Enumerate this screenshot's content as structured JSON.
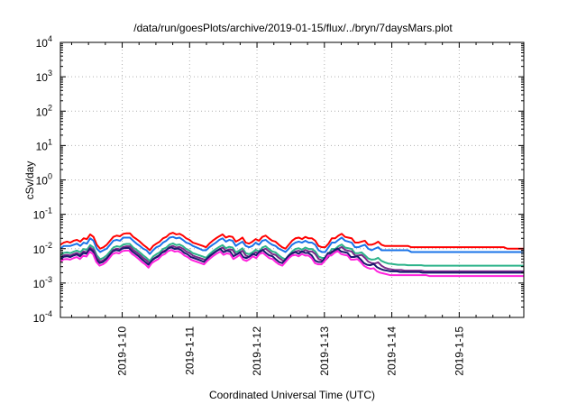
{
  "chart_data": {
    "type": "line",
    "title": "/data/run/goesPlots/archive/2019-01-15/flux/../bryn/7daysMars.plot",
    "xlabel": "Coordinated Universal Time (UTC)",
    "ylabel": "cSv/day",
    "y_scale": "log",
    "ylim": [
      0.0001,
      10000
    ],
    "y_ticks": [
      {
        "exp": "-4",
        "value": 0.0001
      },
      {
        "exp": "-3",
        "value": 0.001
      },
      {
        "exp": "-2",
        "value": 0.01
      },
      {
        "exp": "-1",
        "value": 0.1
      },
      {
        "exp": "0",
        "value": 1
      },
      {
        "exp": "1",
        "value": 10
      },
      {
        "exp": "2",
        "value": 100
      },
      {
        "exp": "3",
        "value": 1000
      },
      {
        "exp": "4",
        "value": 10000
      }
    ],
    "xlim": [
      "2019-01-09T02:00",
      "2019-01-15T23:00"
    ],
    "x_ticks": [
      "2019-1-10",
      "2019-1-11",
      "2019-1-12",
      "2019-1-13",
      "2019-1-14",
      "2019-1-15"
    ],
    "grid": true,
    "series": [
      {
        "color": "#ff0000",
        "values": [
          0.013,
          0.015,
          0.016,
          0.015,
          0.017,
          0.018,
          0.016,
          0.02,
          0.019,
          0.026,
          0.022,
          0.013,
          0.01,
          0.011,
          0.013,
          0.017,
          0.022,
          0.024,
          0.023,
          0.027,
          0.028,
          0.028,
          0.022,
          0.019,
          0.016,
          0.013,
          0.011,
          0.009,
          0.012,
          0.014,
          0.016,
          0.02,
          0.022,
          0.027,
          0.029,
          0.026,
          0.027,
          0.024,
          0.02,
          0.018,
          0.015,
          0.014,
          0.013,
          0.012,
          0.011,
          0.014,
          0.017,
          0.02,
          0.023,
          0.026,
          0.021,
          0.023,
          0.022,
          0.016,
          0.018,
          0.021,
          0.015,
          0.014,
          0.016,
          0.019,
          0.017,
          0.022,
          0.024,
          0.02,
          0.017,
          0.016,
          0.013,
          0.011,
          0.01,
          0.013,
          0.017,
          0.02,
          0.021,
          0.019,
          0.022,
          0.02,
          0.02,
          0.017,
          0.012,
          0.011,
          0.011,
          0.014,
          0.02,
          0.02,
          0.024,
          0.027,
          0.022,
          0.021,
          0.02,
          0.015,
          0.015,
          0.016,
          0.017,
          0.013,
          0.013,
          0.014,
          0.016,
          0.013,
          0.012,
          0.012,
          0.012,
          0.012,
          0.012,
          0.012,
          0.012,
          0.012,
          0.011,
          0.011,
          0.011,
          0.011,
          0.011,
          0.011,
          0.011,
          0.011,
          0.011,
          0.011,
          0.011,
          0.011,
          0.011,
          0.011,
          0.011,
          0.011,
          0.011,
          0.011,
          0.011,
          0.011,
          0.011,
          0.011,
          0.011,
          0.011,
          0.011,
          0.011,
          0.011,
          0.011,
          0.011,
          0.01,
          0.01,
          0.01,
          0.01,
          0.01,
          0.01
        ]
      },
      {
        "color": "#1a73e8",
        "values": [
          0.01,
          0.012,
          0.012,
          0.012,
          0.013,
          0.014,
          0.012,
          0.015,
          0.014,
          0.02,
          0.017,
          0.01,
          0.008,
          0.009,
          0.01,
          0.013,
          0.017,
          0.018,
          0.017,
          0.021,
          0.021,
          0.021,
          0.017,
          0.014,
          0.012,
          0.01,
          0.009,
          0.007,
          0.009,
          0.011,
          0.012,
          0.015,
          0.017,
          0.021,
          0.022,
          0.02,
          0.021,
          0.018,
          0.015,
          0.014,
          0.012,
          0.011,
          0.01,
          0.009,
          0.009,
          0.011,
          0.013,
          0.015,
          0.018,
          0.02,
          0.016,
          0.018,
          0.017,
          0.012,
          0.014,
          0.016,
          0.012,
          0.011,
          0.012,
          0.015,
          0.013,
          0.017,
          0.018,
          0.015,
          0.013,
          0.012,
          0.01,
          0.009,
          0.008,
          0.01,
          0.013,
          0.015,
          0.016,
          0.015,
          0.017,
          0.015,
          0.015,
          0.013,
          0.009,
          0.008,
          0.008,
          0.011,
          0.015,
          0.015,
          0.018,
          0.021,
          0.017,
          0.016,
          0.015,
          0.011,
          0.011,
          0.012,
          0.013,
          0.01,
          0.009,
          0.01,
          0.011,
          0.009,
          0.009,
          0.009,
          0.009,
          0.009,
          0.009,
          0.009,
          0.009,
          0.009,
          0.008,
          0.008,
          0.008,
          0.008,
          0.008,
          0.008,
          0.008,
          0.008,
          0.008,
          0.008,
          0.008,
          0.008,
          0.008,
          0.008,
          0.008,
          0.008,
          0.008,
          0.008,
          0.008,
          0.008,
          0.008,
          0.008,
          0.008,
          0.008,
          0.008,
          0.008,
          0.008,
          0.008,
          0.008,
          0.008,
          0.008,
          0.008,
          0.008,
          0.008,
          0.008
        ]
      },
      {
        "color": "#2db38a",
        "values": [
          0.0065,
          0.0075,
          0.0078,
          0.0074,
          0.0082,
          0.0088,
          0.0079,
          0.0098,
          0.0092,
          0.0127,
          0.0108,
          0.0064,
          0.0049,
          0.0054,
          0.0064,
          0.0083,
          0.0108,
          0.0118,
          0.0113,
          0.0132,
          0.0137,
          0.0137,
          0.0108,
          0.0093,
          0.0078,
          0.0064,
          0.0054,
          0.0044,
          0.0059,
          0.0069,
          0.0078,
          0.0098,
          0.0108,
          0.0132,
          0.0142,
          0.0127,
          0.0132,
          0.0118,
          0.0098,
          0.0088,
          0.0074,
          0.0069,
          0.0064,
          0.0059,
          0.0054,
          0.0069,
          0.0083,
          0.0098,
          0.0113,
          0.0127,
          0.0103,
          0.0113,
          0.0108,
          0.0078,
          0.0088,
          0.0103,
          0.0074,
          0.0069,
          0.0078,
          0.0093,
          0.0083,
          0.0108,
          0.0118,
          0.0098,
          0.0083,
          0.0078,
          0.0064,
          0.0054,
          0.0049,
          0.0064,
          0.0083,
          0.0098,
          0.0103,
          0.0093,
          0.0108,
          0.0098,
          0.0098,
          0.0083,
          0.0059,
          0.0054,
          0.0054,
          0.0069,
          0.0098,
          0.0098,
          0.0118,
          0.0132,
          0.0108,
          0.0103,
          0.0098,
          0.0074,
          0.0074,
          0.0078,
          0.0064,
          0.0052,
          0.0048,
          0.0049,
          0.0054,
          0.0044,
          0.004,
          0.0037,
          0.0036,
          0.0035,
          0.0034,
          0.0034,
          0.0034,
          0.0033,
          0.0033,
          0.0033,
          0.0033,
          0.0033,
          0.0032,
          0.0032,
          0.0032,
          0.0032,
          0.0032,
          0.0032,
          0.0032,
          0.0032,
          0.0032,
          0.0032,
          0.0032,
          0.0032,
          0.0032,
          0.0032,
          0.0032,
          0.0032,
          0.0032,
          0.0032,
          0.0032,
          0.0032,
          0.0032,
          0.0032,
          0.0032,
          0.0032,
          0.0032,
          0.0032,
          0.0032,
          0.0032,
          0.0032,
          0.0032,
          0.0032
        ]
      },
      {
        "color": "#7a2a8a",
        "values": [
          0.0055,
          0.0064,
          0.0066,
          0.0063,
          0.007,
          0.0075,
          0.0067,
          0.0083,
          0.0078,
          0.0108,
          0.0092,
          0.0054,
          0.0042,
          0.0046,
          0.0054,
          0.007,
          0.0092,
          0.01,
          0.0096,
          0.0112,
          0.0117,
          0.0117,
          0.0092,
          0.0079,
          0.0066,
          0.0054,
          0.0046,
          0.0037,
          0.005,
          0.0058,
          0.0066,
          0.0083,
          0.0092,
          0.0112,
          0.012,
          0.0108,
          0.0112,
          0.01,
          0.0083,
          0.0075,
          0.0063,
          0.0058,
          0.0054,
          0.005,
          0.0046,
          0.0058,
          0.007,
          0.0083,
          0.0096,
          0.0108,
          0.0087,
          0.0096,
          0.0092,
          0.0066,
          0.0075,
          0.0087,
          0.0063,
          0.0058,
          0.0066,
          0.0079,
          0.007,
          0.0092,
          0.01,
          0.0083,
          0.007,
          0.0066,
          0.0054,
          0.0046,
          0.0042,
          0.0054,
          0.007,
          0.0083,
          0.0087,
          0.0079,
          0.0092,
          0.0083,
          0.0083,
          0.007,
          0.005,
          0.0046,
          0.0046,
          0.0058,
          0.0083,
          0.0083,
          0.01,
          0.0112,
          0.0092,
          0.0087,
          0.0083,
          0.0063,
          0.0063,
          0.0066,
          0.0054,
          0.0042,
          0.0038,
          0.0037,
          0.004,
          0.0032,
          0.0028,
          0.0026,
          0.0025,
          0.0024,
          0.0024,
          0.0024,
          0.0023,
          0.0023,
          0.0023,
          0.0023,
          0.0023,
          0.0023,
          0.0022,
          0.0022,
          0.0022,
          0.0022,
          0.0022,
          0.0022,
          0.0022,
          0.0022,
          0.0022,
          0.0022,
          0.0022,
          0.0022,
          0.0022,
          0.0022,
          0.0022,
          0.0022,
          0.0022,
          0.0022,
          0.0022,
          0.0022,
          0.0022,
          0.0022,
          0.0022,
          0.0022,
          0.0022,
          0.0022,
          0.0022,
          0.0022,
          0.0022,
          0.0022,
          0.0022
        ]
      },
      {
        "color": "#1a1a6e",
        "values": [
          0.005,
          0.0058,
          0.006,
          0.0057,
          0.0063,
          0.0068,
          0.006,
          0.0075,
          0.0071,
          0.0098,
          0.0083,
          0.0049,
          0.0038,
          0.0041,
          0.0049,
          0.0064,
          0.0083,
          0.0091,
          0.0087,
          0.0101,
          0.0105,
          0.0105,
          0.0083,
          0.0071,
          0.006,
          0.0049,
          0.0041,
          0.0034,
          0.0045,
          0.0053,
          0.006,
          0.0075,
          0.0083,
          0.0101,
          0.0109,
          0.0098,
          0.0101,
          0.0091,
          0.0075,
          0.0068,
          0.0057,
          0.0053,
          0.0049,
          0.0045,
          0.0041,
          0.0053,
          0.0064,
          0.0075,
          0.0087,
          0.0098,
          0.0079,
          0.0087,
          0.0083,
          0.006,
          0.0068,
          0.0079,
          0.0057,
          0.0053,
          0.006,
          0.0071,
          0.0064,
          0.0083,
          0.0091,
          0.0075,
          0.0064,
          0.006,
          0.0049,
          0.0041,
          0.0038,
          0.0049,
          0.0064,
          0.0075,
          0.0079,
          0.0071,
          0.0083,
          0.0075,
          0.0075,
          0.0064,
          0.0045,
          0.0041,
          0.0041,
          0.0053,
          0.0075,
          0.0075,
          0.0091,
          0.0101,
          0.0083,
          0.0079,
          0.0075,
          0.0057,
          0.0057,
          0.006,
          0.0049,
          0.0038,
          0.0034,
          0.0033,
          0.0036,
          0.0029,
          0.0026,
          0.0024,
          0.0023,
          0.0022,
          0.0022,
          0.0022,
          0.0021,
          0.0021,
          0.0021,
          0.0021,
          0.0021,
          0.0021,
          0.0021,
          0.002,
          0.002,
          0.002,
          0.002,
          0.002,
          0.002,
          0.002,
          0.002,
          0.002,
          0.002,
          0.002,
          0.002,
          0.002,
          0.002,
          0.002,
          0.002,
          0.002,
          0.002,
          0.002,
          0.002,
          0.002,
          0.002,
          0.002,
          0.002,
          0.002,
          0.002,
          0.002,
          0.002,
          0.002,
          0.002,
          0.002,
          0.002
        ]
      },
      {
        "color": "#ff22dd",
        "values": [
          0.0042,
          0.0049,
          0.005,
          0.0048,
          0.0053,
          0.0057,
          0.005,
          0.0063,
          0.0059,
          0.0082,
          0.007,
          0.0041,
          0.0032,
          0.0035,
          0.0041,
          0.0053,
          0.007,
          0.0076,
          0.0073,
          0.0085,
          0.0088,
          0.0088,
          0.007,
          0.006,
          0.005,
          0.0041,
          0.0035,
          0.0028,
          0.0038,
          0.0044,
          0.005,
          0.0063,
          0.007,
          0.0085,
          0.0092,
          0.0082,
          0.0085,
          0.0076,
          0.0063,
          0.0057,
          0.0048,
          0.0044,
          0.0041,
          0.0038,
          0.0035,
          0.0044,
          0.0053,
          0.0063,
          0.0073,
          0.0082,
          0.0066,
          0.0073,
          0.007,
          0.005,
          0.0057,
          0.0066,
          0.0048,
          0.0044,
          0.005,
          0.006,
          0.0053,
          0.007,
          0.0076,
          0.0063,
          0.0053,
          0.005,
          0.0041,
          0.0035,
          0.0032,
          0.0041,
          0.0053,
          0.0063,
          0.0066,
          0.006,
          0.007,
          0.0063,
          0.0063,
          0.0053,
          0.0038,
          0.0035,
          0.0035,
          0.0044,
          0.0063,
          0.0063,
          0.0076,
          0.0085,
          0.007,
          0.0066,
          0.0063,
          0.0048,
          0.0048,
          0.005,
          0.0041,
          0.0032,
          0.0028,
          0.0026,
          0.0027,
          0.0022,
          0.002,
          0.0019,
          0.0018,
          0.0017,
          0.0017,
          0.0017,
          0.0017,
          0.0017,
          0.0017,
          0.0017,
          0.0017,
          0.0017,
          0.0017,
          0.0017,
          0.0017,
          0.0016,
          0.0016,
          0.0016,
          0.0016,
          0.0016,
          0.0016,
          0.0016,
          0.0016,
          0.0016,
          0.0016,
          0.0016,
          0.0016,
          0.0016,
          0.0016,
          0.0016,
          0.0016,
          0.0016,
          0.0016,
          0.0016,
          0.0016,
          0.0016,
          0.0016,
          0.0016,
          0.0016,
          0.0016,
          0.0016,
          0.0016,
          0.0016,
          0.0016,
          0.0016
        ]
      }
    ]
  }
}
